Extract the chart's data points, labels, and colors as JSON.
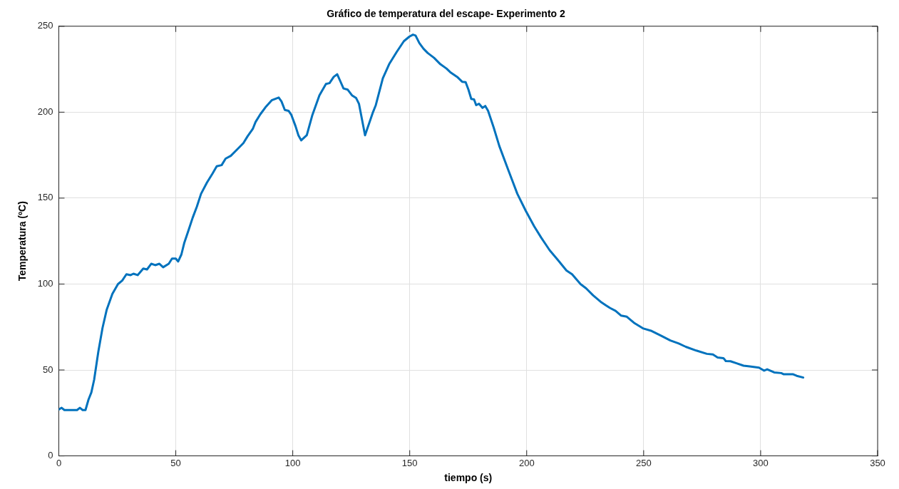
{
  "chart_data": {
    "type": "line",
    "title": "Gráfico de temperatura del escape- Experimento 2",
    "xlabel": "tiempo (s)",
    "ylabel": "Temperatura (ºC)",
    "xlim": [
      0,
      350
    ],
    "xticks": [
      0,
      50,
      100,
      150,
      200,
      250,
      300,
      350
    ],
    "ylim": [
      0,
      250
    ],
    "yticks": [
      0,
      50,
      100,
      150,
      200,
      250
    ],
    "grid": true,
    "marker": "none",
    "line_style": "solid",
    "series": [
      {
        "color": "#0072bd",
        "x": [
          0,
          1.2,
          2.4,
          7.8,
          9,
          10.2,
          11.4,
          12.7,
          13.9,
          15.1,
          16.9,
          18.7,
          20.5,
          22.9,
          25.3,
          27.1,
          28.9,
          30.7,
          31.9,
          33.7,
          36.1,
          37.7,
          39.5,
          41.2,
          43,
          44.6,
          47,
          48.4,
          50,
          51,
          52.4,
          53.6,
          55.4,
          57.2,
          59,
          60.8,
          63.3,
          65.7,
          67.5,
          69.6,
          71.3,
          73.5,
          76.5,
          78.9,
          80.7,
          82.9,
          84.1,
          86.1,
          88.6,
          91,
          92.8,
          94,
          95.2,
          96.6,
          98.2,
          99.4,
          101.2,
          102.4,
          103.6,
          106,
          108.4,
          111.4,
          114.2,
          115.7,
          117.5,
          119,
          120.2,
          121.7,
          123.5,
          125.3,
          127.1,
          128.3,
          130.9,
          134.3,
          135.5,
          138.5,
          141.2,
          144.5,
          147.5,
          149.9,
          151.4,
          152.5,
          154.1,
          155.9,
          157.7,
          160.4,
          163.1,
          165.7,
          167.3,
          170.3,
          172.4,
          173.9,
          175.1,
          176.3,
          177.5,
          178.4,
          179.6,
          181.1,
          182.3,
          183.5,
          185.9,
          188.3,
          191.9,
          196,
          199.6,
          203.2,
          206.2,
          209.8,
          213.4,
          217,
          219.4,
          223,
          225.4,
          228.4,
          232,
          233.8,
          235.6,
          238,
          240.4,
          242.8,
          245.8,
          249.9,
          253.4,
          257.4,
          261.4,
          265,
          268,
          272.5,
          277,
          279.6,
          281.6,
          284.1,
          285.1,
          287.1,
          289.7,
          292.7,
          295.3,
          299.3,
          301.5,
          302.8,
          305.8,
          308.8,
          309.9,
          313.9,
          315.4,
          318.2
        ],
        "values": [
          27,
          28,
          26.7,
          26.7,
          28,
          26.7,
          26.7,
          32.8,
          36.9,
          44.3,
          60.7,
          74.6,
          85.2,
          94.3,
          100,
          102,
          105.7,
          105.2,
          106,
          105.2,
          109,
          108.5,
          111.8,
          111,
          111.8,
          109.8,
          111.8,
          114.8,
          114.8,
          113.1,
          117.2,
          123.8,
          131.1,
          138.5,
          145,
          152.5,
          159,
          164.3,
          168.5,
          169.2,
          173,
          174.6,
          178.7,
          182,
          186,
          190.2,
          194.3,
          198.7,
          203.3,
          206.9,
          207.9,
          208.5,
          206.2,
          201.3,
          200.8,
          198.4,
          191.8,
          186.6,
          183.6,
          186.6,
          198.4,
          209.8,
          216.4,
          216.9,
          220.5,
          222.1,
          218.4,
          213.8,
          213.1,
          209.8,
          208.2,
          204.9,
          186.6,
          200,
          204.1,
          219.7,
          227.9,
          235.2,
          241.3,
          244,
          245.1,
          244.6,
          240.2,
          236.9,
          234.4,
          231.6,
          227.9,
          225.4,
          223.3,
          220.5,
          217.7,
          217.5,
          213.1,
          207.7,
          207.4,
          204.1,
          204.9,
          202.5,
          203.6,
          200.8,
          191,
          180.3,
          167.2,
          152.5,
          142.6,
          133.6,
          127,
          119.7,
          113.9,
          107.9,
          105.7,
          100,
          97.5,
          93.4,
          89.3,
          87.7,
          86.1,
          84.4,
          81.6,
          81,
          77.5,
          74.1,
          72.7,
          70,
          67.2,
          65.4,
          63.5,
          61.3,
          59.4,
          59,
          57.3,
          56.9,
          55.2,
          55.1,
          53.9,
          52.5,
          52.1,
          51.4,
          49.6,
          50.4,
          48.6,
          48.2,
          47.5,
          47.5,
          46.6,
          45.6
        ]
      }
    ]
  }
}
